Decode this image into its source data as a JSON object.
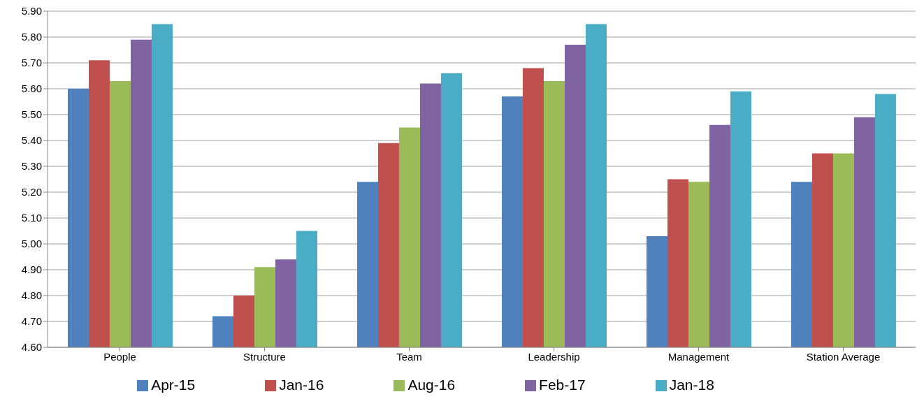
{
  "chart_data": {
    "type": "bar",
    "categories": [
      "People",
      "Structure",
      "Team",
      "Leadership",
      "Management",
      "Station Average"
    ],
    "series": [
      {
        "name": "Apr-15",
        "color": "#4f81bd",
        "values": [
          5.6,
          4.72,
          5.24,
          5.57,
          5.03,
          5.24
        ]
      },
      {
        "name": "Jan-16",
        "color": "#c0504d",
        "values": [
          5.71,
          4.8,
          5.39,
          5.68,
          5.25,
          5.35
        ]
      },
      {
        "name": "Aug-16",
        "color": "#9bbb59",
        "values": [
          5.63,
          4.91,
          5.45,
          5.63,
          5.24,
          5.35
        ]
      },
      {
        "name": "Feb-17",
        "color": "#8064a2",
        "values": [
          5.79,
          4.94,
          5.62,
          5.77,
          5.46,
          5.49
        ]
      },
      {
        "name": "Jan-18",
        "color": "#4bacc6",
        "values": [
          5.85,
          5.05,
          5.66,
          5.85,
          5.59,
          5.58
        ]
      }
    ],
    "ylim": [
      4.6,
      5.9
    ],
    "yticks": [
      {
        "value": 4.6,
        "label": "4.60"
      },
      {
        "value": 4.7,
        "label": "4.70"
      },
      {
        "value": 4.8,
        "label": "4.80"
      },
      {
        "value": 4.9,
        "label": "4.90"
      },
      {
        "value": 5.0,
        "label": "5.00"
      },
      {
        "value": 5.1,
        "label": "5.10"
      },
      {
        "value": 5.2,
        "label": "5.20"
      },
      {
        "value": 5.3,
        "label": "5.30"
      },
      {
        "value": 5.4,
        "label": "5.40"
      },
      {
        "value": 5.5,
        "label": "5.50"
      },
      {
        "value": 5.6,
        "label": "5.60"
      },
      {
        "value": 5.7,
        "label": "5.70"
      },
      {
        "value": 5.8,
        "label": "5.80"
      },
      {
        "value": 5.9,
        "label": "5.90"
      }
    ],
    "grid": "y",
    "legend": "bottom"
  }
}
